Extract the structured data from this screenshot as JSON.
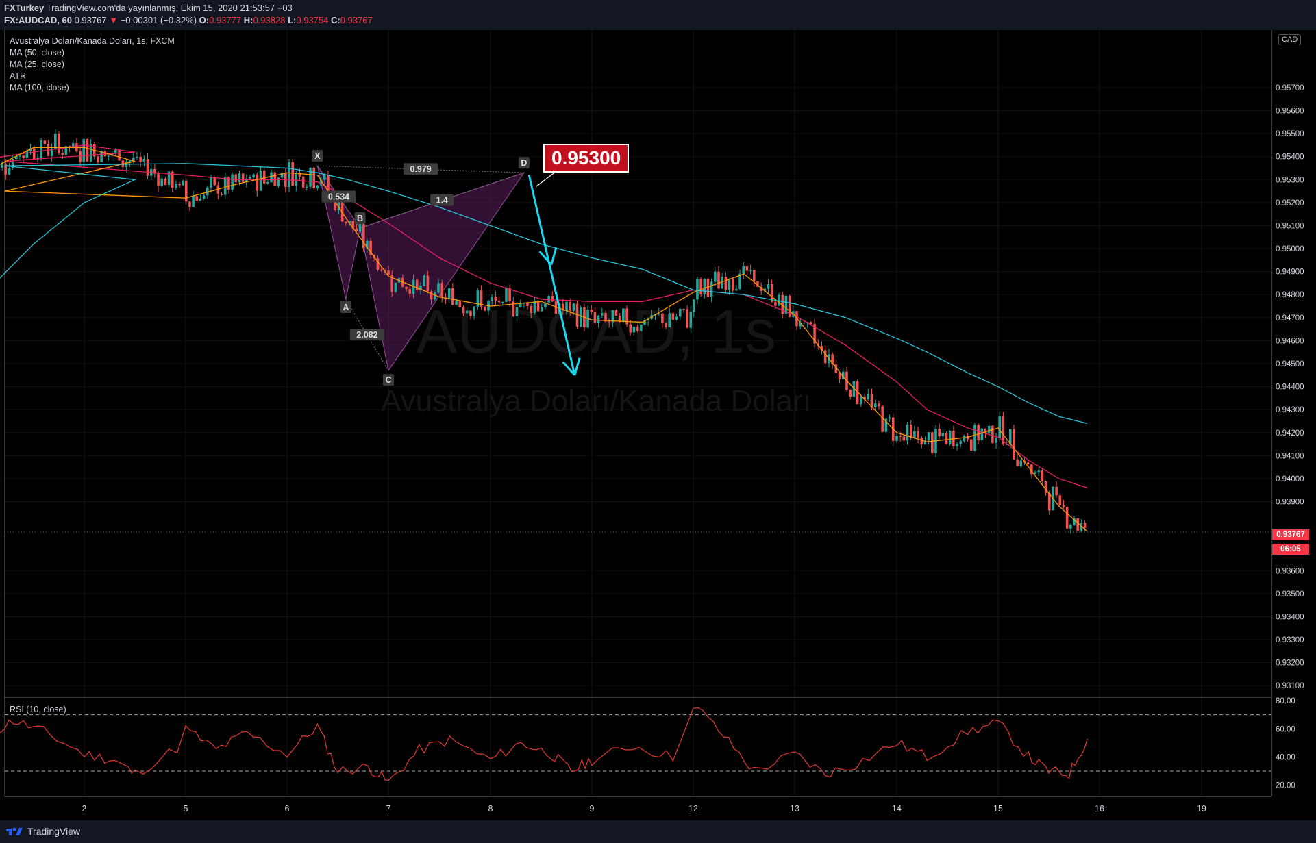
{
  "header": {
    "publisher": "FXTurkey",
    "published_text": "TradingView.com'da yayınlanmış, Ekim 15, 2020 21:53:57 +03",
    "symbol_interval": "FX:AUDCAD, 60",
    "last": "0.93767",
    "change": "−0.00301 (−0.32%)",
    "open_label": "O:",
    "open": "0.93777",
    "high_label": "H:",
    "high": "0.93828",
    "low_label": "L:",
    "low": "0.93754",
    "close_label": "C:",
    "close": "0.93767"
  },
  "legend": {
    "title": "Avustralya Doları/Kanada Doları, 1s, FXCM",
    "ma50": "MA (50, close)",
    "ma25": "MA (25, close)",
    "atr": "ATR",
    "ma100": "MA (100, close)"
  },
  "watermark": {
    "symbol": "AUDCAD, 1s",
    "name": "Avustralya Doları/Kanada Doları"
  },
  "currency_badge": "CAD",
  "target_label": "0.95300",
  "price_tag": "0.93767",
  "countdown": "06:05",
  "rsi_label": "RSI (10, close)",
  "footer": {
    "brand": "TradingView",
    "logo_icon": "tradingview-logo-icon"
  },
  "colors": {
    "background": "#000000",
    "bull": "#26a69a",
    "bear": "#ef5350",
    "ma50": "#e91e63",
    "ma25": "#ff9800",
    "ma100": "#26c6da",
    "pattern_fill": "#5b1d5e",
    "arrow": "#18d8f0",
    "rsi": "#e53935"
  },
  "chart_data": [
    {
      "type": "candlestick",
      "x_ticks": [
        "2",
        "5",
        "6",
        "7",
        "8",
        "9",
        "12",
        "13",
        "14",
        "15",
        "16",
        "19"
      ],
      "y_ticks": [
        "0.95700",
        "0.95600",
        "0.95500",
        "0.95400",
        "0.95300",
        "0.95200",
        "0.95100",
        "0.95000",
        "0.94900",
        "0.94800",
        "0.94700",
        "0.94600",
        "0.94500",
        "0.94400",
        "0.94300",
        "0.94200",
        "0.94100",
        "0.94000",
        "0.93900",
        "0.93600",
        "0.93500",
        "0.93400",
        "0.93300",
        "0.93200",
        "0.93100"
      ],
      "ylim": [
        0.9305,
        0.9595
      ],
      "last_price": 0.93767,
      "harmonic_pattern": {
        "points": [
          {
            "name": "X",
            "x": 6.3,
            "y": 0.9536
          },
          {
            "name": "A",
            "x": 6.58,
            "y": 0.9478
          },
          {
            "name": "B",
            "x": 6.72,
            "y": 0.9509
          },
          {
            "name": "C",
            "x": 7.0,
            "y": 0.9447
          },
          {
            "name": "D",
            "x": 8.33,
            "y": 0.9533
          }
        ],
        "ratio_labels": [
          "0.979",
          "0.534",
          "1.4",
          "2.082"
        ]
      },
      "arrow": {
        "from": {
          "x": 8.38,
          "y": 0.9532
        },
        "to": {
          "x": 8.83,
          "y": 0.9445
        }
      },
      "series": [
        {
          "name": "MA (50, close)",
          "points": [
            [
              1.05,
              0.9539
            ],
            [
              1.5,
              0.9542
            ],
            [
              2,
              0.9545
            ],
            [
              2.5,
              0.9542
            ],
            [
              3,
              0.9538
            ],
            [
              5,
              0.9532
            ],
            [
              5.5,
              0.953
            ],
            [
              6,
              0.953
            ],
            [
              6.3,
              0.9529
            ],
            [
              6.6,
              0.9522
            ],
            [
              7,
              0.9511
            ],
            [
              7.5,
              0.9496
            ],
            [
              8,
              0.9485
            ],
            [
              8.5,
              0.9478
            ],
            [
              9,
              0.9477
            ],
            [
              9.5,
              0.9477
            ],
            [
              12,
              0.9482
            ],
            [
              12.5,
              0.948
            ],
            [
              13,
              0.9471
            ],
            [
              13.5,
              0.9458
            ],
            [
              14,
              0.9442
            ],
            [
              14.3,
              0.943
            ],
            [
              14.7,
              0.9422
            ],
            [
              15,
              0.9418
            ],
            [
              15.3,
              0.9408
            ],
            [
              15.6,
              0.94
            ],
            [
              15.88,
              0.9396
            ]
          ]
        },
        {
          "name": "MA (25, close)",
          "points": [
            [
              1.05,
              0.9534
            ],
            [
              1.5,
              0.9544
            ],
            [
              2,
              0.9544
            ],
            [
              2.5,
              0.9538
            ],
            [
              3,
              0.9525
            ],
            [
              5,
              0.9522
            ],
            [
              5.5,
              0.9528
            ],
            [
              6,
              0.9533
            ],
            [
              6.3,
              0.9532
            ],
            [
              6.6,
              0.9512
            ],
            [
              7,
              0.9488
            ],
            [
              7.5,
              0.9479
            ],
            [
              8,
              0.9475
            ],
            [
              8.5,
              0.9477
            ],
            [
              9,
              0.9469
            ],
            [
              9.5,
              0.9468
            ],
            [
              12,
              0.9481
            ],
            [
              12.5,
              0.9489
            ],
            [
              13,
              0.9471
            ],
            [
              13.5,
              0.9443
            ],
            [
              14,
              0.942
            ],
            [
              14.3,
              0.9416
            ],
            [
              14.7,
              0.9418
            ],
            [
              15,
              0.9422
            ],
            [
              15.3,
              0.9405
            ],
            [
              15.6,
              0.9388
            ],
            [
              15.88,
              0.9377
            ]
          ]
        },
        {
          "name": "MA (100, close)",
          "points": [
            [
              1.05,
              0.9482
            ],
            [
              1.5,
              0.9502
            ],
            [
              2,
              0.952
            ],
            [
              2.5,
              0.953
            ],
            [
              3,
              0.9536
            ],
            [
              5,
              0.9537
            ],
            [
              5.5,
              0.9536
            ],
            [
              6,
              0.9535
            ],
            [
              6.3,
              0.9533
            ],
            [
              6.6,
              0.953
            ],
            [
              7,
              0.9525
            ],
            [
              7.5,
              0.9518
            ],
            [
              8,
              0.951
            ],
            [
              8.5,
              0.9502
            ],
            [
              9,
              0.9496
            ],
            [
              9.5,
              0.9491
            ],
            [
              12,
              0.9482
            ],
            [
              12.5,
              0.948
            ],
            [
              13,
              0.9476
            ],
            [
              13.5,
              0.947
            ],
            [
              14,
              0.9461
            ],
            [
              14.3,
              0.9455
            ],
            [
              14.7,
              0.9446
            ],
            [
              15,
              0.944
            ],
            [
              15.3,
              0.9433
            ],
            [
              15.6,
              0.9427
            ],
            [
              15.88,
              0.9424
            ]
          ]
        }
      ]
    },
    {
      "type": "line",
      "y_ticks": [
        "80.00",
        "60.00",
        "40.00",
        "20.00"
      ],
      "ylim": [
        12,
        82
      ],
      "levels": [
        70,
        30
      ],
      "series": [
        {
          "name": "RSI (10, close)",
          "points": [
            [
              1.05,
              55
            ],
            [
              1.3,
              66
            ],
            [
              1.6,
              58
            ],
            [
              2,
              42
            ],
            [
              2.3,
              38
            ],
            [
              2.5,
              28
            ],
            [
              3,
              50
            ],
            [
              5,
              60
            ],
            [
              5.3,
              45
            ],
            [
              5.6,
              57
            ],
            [
              6,
              42
            ],
            [
              6.3,
              62
            ],
            [
              6.5,
              30
            ],
            [
              6.8,
              33
            ],
            [
              7,
              22
            ],
            [
              7.3,
              45
            ],
            [
              7.6,
              52
            ],
            [
              8,
              38
            ],
            [
              8.3,
              50
            ],
            [
              8.6,
              42
            ],
            [
              8.8,
              30
            ],
            [
              9,
              38
            ],
            [
              9.4,
              48
            ],
            [
              9.8,
              40
            ],
            [
              12,
              78
            ],
            [
              12.3,
              55
            ],
            [
              12.6,
              30
            ],
            [
              13,
              42
            ],
            [
              13.3,
              28
            ],
            [
              13.6,
              35
            ],
            [
              14,
              50
            ],
            [
              14.3,
              40
            ],
            [
              14.7,
              58
            ],
            [
              15,
              64
            ],
            [
              15.3,
              40
            ],
            [
              15.5,
              30
            ],
            [
              15.7,
              28
            ],
            [
              15.88,
              53
            ]
          ]
        }
      ]
    }
  ]
}
